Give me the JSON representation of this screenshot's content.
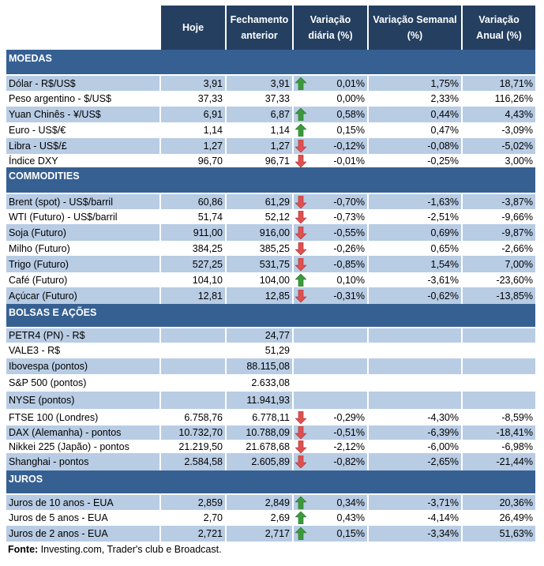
{
  "header": {
    "col_label": "",
    "hoje": "Hoje",
    "fechamento": "Fechamento anterior",
    "diaria": "Variação diária (%)",
    "semanal": "Variação Semanal (%)",
    "anual": "Variação Anual (%)"
  },
  "colors": {
    "header_bg": "#243f60",
    "section_bg": "#366092",
    "stripe": "#b8cce4",
    "arrow_up": "#3c9a3c",
    "arrow_down": "#e05050"
  },
  "sections": [
    {
      "title": "MOEDAS",
      "rows": [
        {
          "label": "Dólar - R$/US$",
          "hoje": "3,91",
          "fechamento": "3,91",
          "trend": "up",
          "diaria": "0,01%",
          "semanal": "1,75%",
          "anual": "18,71%"
        },
        {
          "label": "Peso argentino - $/US$",
          "hoje": "37,33",
          "fechamento": "37,33",
          "trend": "",
          "diaria": "0,00%",
          "semanal": "2,33%",
          "anual": "116,26%"
        },
        {
          "label": "Yuan Chinês - ¥/US$",
          "hoje": "6,91",
          "fechamento": "6,87",
          "trend": "up",
          "diaria": "0,58%",
          "semanal": "0,44%",
          "anual": "4,43%"
        },
        {
          "label": "Euro - US$/€",
          "hoje": "1,14",
          "fechamento": "1,14",
          "trend": "up",
          "diaria": "0,15%",
          "semanal": "0,47%",
          "anual": "-3,09%"
        },
        {
          "label": "Libra - US$/£",
          "hoje": "1,27",
          "fechamento": "1,27",
          "trend": "down",
          "diaria": "-0,12%",
          "semanal": "-0,08%",
          "anual": "-5,02%"
        },
        {
          "label": "Índice DXY",
          "hoje": "96,70",
          "fechamento": "96,71",
          "trend": "down",
          "diaria": "-0,01%",
          "semanal": "-0,25%",
          "anual": "3,00%"
        }
      ]
    },
    {
      "title": "COMMODITIES",
      "rows": [
        {
          "label": "Brent (spot) - US$/barril",
          "hoje": "60,86",
          "fechamento": "61,29",
          "trend": "down",
          "diaria": "-0,70%",
          "semanal": "-1,63%",
          "anual": "-3,87%"
        },
        {
          "label": "WTI (Futuro) - US$/barril",
          "hoje": "51,74",
          "fechamento": "52,12",
          "trend": "down",
          "diaria": "-0,73%",
          "semanal": "-2,51%",
          "anual": "-9,66%"
        },
        {
          "label": "Soja (Futuro)",
          "hoje": "911,00",
          "fechamento": "916,00",
          "trend": "down",
          "diaria": "-0,55%",
          "semanal": "0,69%",
          "anual": "-9,87%"
        },
        {
          "label": "Milho (Futuro)",
          "hoje": "384,25",
          "fechamento": "385,25",
          "trend": "down",
          "diaria": "-0,26%",
          "semanal": "0,65%",
          "anual": "-2,66%"
        },
        {
          "label": "Trigo (Futuro)",
          "hoje": "527,25",
          "fechamento": "531,75",
          "trend": "down",
          "diaria": "-0,85%",
          "semanal": "1,54%",
          "anual": "7,00%"
        },
        {
          "label": "Café (Futuro)",
          "hoje": "104,10",
          "fechamento": "104,00",
          "trend": "up",
          "diaria": "0,10%",
          "semanal": "-3,61%",
          "anual": "-23,60%"
        },
        {
          "label": "Açúcar (Futuro)",
          "hoje": "12,81",
          "fechamento": "12,85",
          "trend": "down",
          "diaria": "-0,31%",
          "semanal": "-0,62%",
          "anual": "-13,85%"
        }
      ]
    },
    {
      "title": "BOLSAS E AÇÕES",
      "rows": [
        {
          "label": "PETR4 (PN) - R$",
          "hoje": "",
          "fechamento": "24,77",
          "trend": "",
          "diaria": "",
          "semanal": "",
          "anual": ""
        },
        {
          "label": "VALE3 - R$",
          "hoje": "",
          "fechamento": "51,29",
          "trend": "",
          "diaria": "",
          "semanal": "",
          "anual": ""
        },
        {
          "label": "Ibovespa (pontos)",
          "hoje": "",
          "fechamento": "88.115,08",
          "trend": "",
          "diaria": "",
          "semanal": "",
          "anual": ""
        },
        {
          "label": "S&P 500 (pontos)",
          "hoje": "",
          "fechamento": "2.633,08",
          "trend": "",
          "diaria": "",
          "semanal": "",
          "anual": ""
        },
        {
          "label": "NYSE (pontos)",
          "hoje": "",
          "fechamento": "11.941,93",
          "trend": "",
          "diaria": "",
          "semanal": "",
          "anual": ""
        },
        {
          "label": "FTSE 100 (Londres)",
          "hoje": "6.758,76",
          "fechamento": "6.778,11",
          "trend": "down",
          "diaria": "-0,29%",
          "semanal": "-4,30%",
          "anual": "-8,59%"
        },
        {
          "label": "DAX (Alemanha) - pontos",
          "hoje": "10.732,70",
          "fechamento": "10.788,09",
          "trend": "down",
          "diaria": "-0,51%",
          "semanal": "-6,39%",
          "anual": "-18,41%"
        },
        {
          "label": "Nikkei 225 (Japão) - pontos",
          "hoje": "21.219,50",
          "fechamento": "21.678,68",
          "trend": "down",
          "diaria": "-2,12%",
          "semanal": "-6,00%",
          "anual": "-6,98%"
        },
        {
          "label": "Shanghai - pontos",
          "hoje": "2.584,58",
          "fechamento": "2.605,89",
          "trend": "down",
          "diaria": "-0,82%",
          "semanal": "-2,65%",
          "anual": "-21,44%"
        }
      ]
    },
    {
      "title": "JUROS",
      "rows": [
        {
          "label": "Juros de 10 anos - EUA",
          "hoje": "2,859",
          "fechamento": "2,849",
          "trend": "up",
          "diaria": "0,34%",
          "semanal": "-3,71%",
          "anual": "20,36%"
        },
        {
          "label": "Juros de 5 anos - EUA",
          "hoje": "2,70",
          "fechamento": "2,69",
          "trend": "up",
          "diaria": "0,43%",
          "semanal": "-4,14%",
          "anual": "26,49%"
        },
        {
          "label": "Juros de 2 anos - EUA",
          "hoje": "2,721",
          "fechamento": "2,717",
          "trend": "up",
          "diaria": "0,15%",
          "semanal": "-3,34%",
          "anual": "51,63%"
        }
      ]
    }
  ],
  "footer": {
    "label": "Fonte:",
    "text": " Investing.com, Trader's club e Broadcast."
  }
}
